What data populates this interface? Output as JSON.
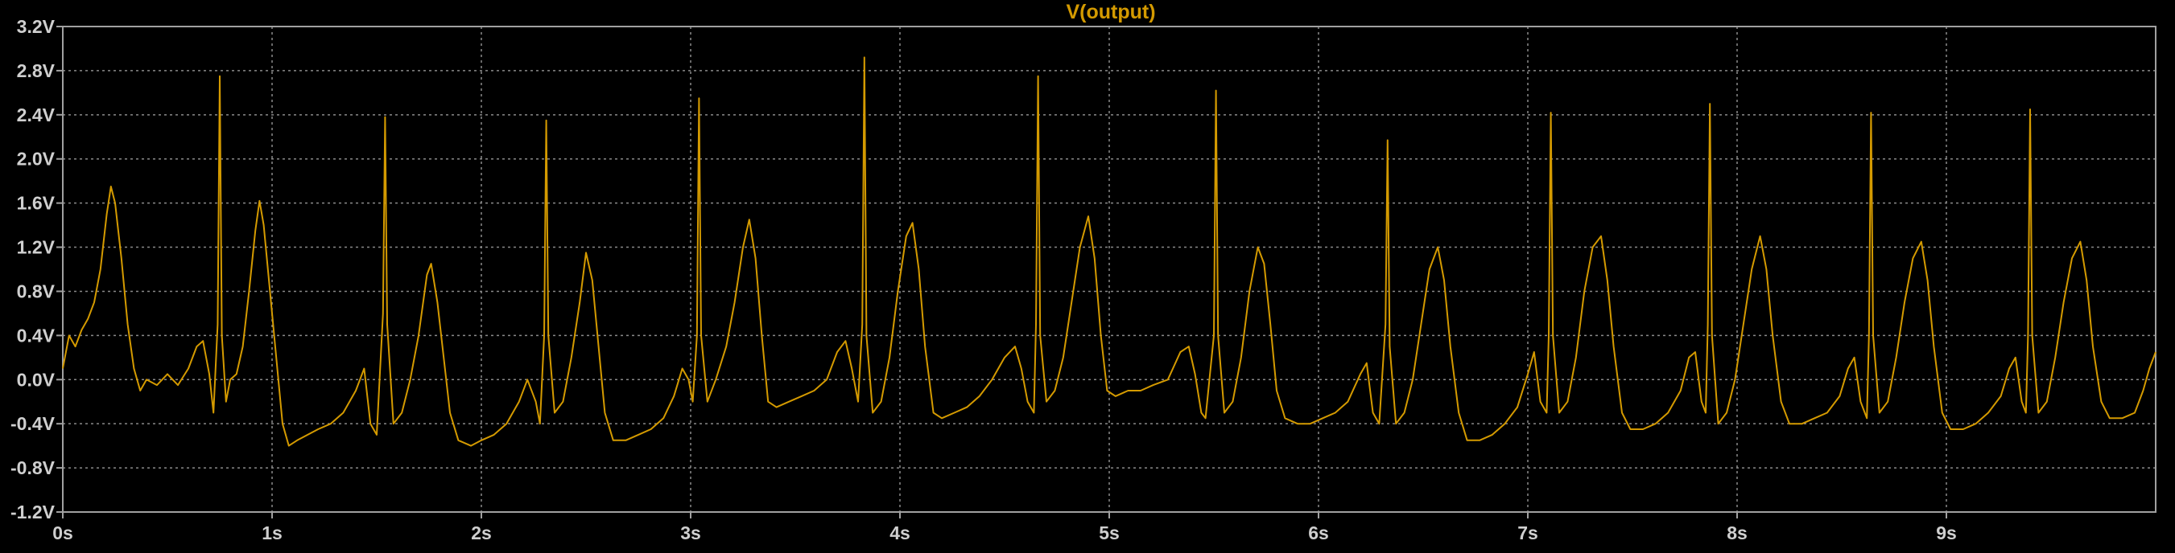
{
  "chart_data": {
    "type": "line",
    "title": "V(output)",
    "xlabel": "",
    "ylabel": "",
    "xlim": [
      0,
      10
    ],
    "ylim": [
      -1.2,
      3.2
    ],
    "grid": true,
    "x_ticks": [
      {
        "value": 0,
        "label": "0s"
      },
      {
        "value": 1,
        "label": "1s"
      },
      {
        "value": 2,
        "label": "2s"
      },
      {
        "value": 3,
        "label": "3s"
      },
      {
        "value": 4,
        "label": "4s"
      },
      {
        "value": 5,
        "label": "5s"
      },
      {
        "value": 6,
        "label": "6s"
      },
      {
        "value": 7,
        "label": "7s"
      },
      {
        "value": 8,
        "label": "8s"
      },
      {
        "value": 9,
        "label": "9s"
      }
    ],
    "y_ticks": [
      {
        "value": 3.2,
        "label": "3.2V"
      },
      {
        "value": 2.8,
        "label": "2.8V"
      },
      {
        "value": 2.4,
        "label": "2.4V"
      },
      {
        "value": 2.0,
        "label": "2.0V"
      },
      {
        "value": 1.6,
        "label": "1.6V"
      },
      {
        "value": 1.2,
        "label": "1.2V"
      },
      {
        "value": 0.8,
        "label": "0.8V"
      },
      {
        "value": 0.4,
        "label": "0.4V"
      },
      {
        "value": 0.0,
        "label": "0.0V"
      },
      {
        "value": -0.4,
        "label": "-0.4V"
      },
      {
        "value": -0.8,
        "label": "-0.8V"
      },
      {
        "value": -1.2,
        "label": "-1.2V"
      }
    ],
    "series": [
      {
        "name": "V(output)",
        "color": "#d49a00",
        "points": [
          [
            0.0,
            0.1
          ],
          [
            0.03,
            0.4
          ],
          [
            0.06,
            0.3
          ],
          [
            0.09,
            0.45
          ],
          [
            0.12,
            0.55
          ],
          [
            0.15,
            0.7
          ],
          [
            0.18,
            1.0
          ],
          [
            0.21,
            1.5
          ],
          [
            0.23,
            1.75
          ],
          [
            0.25,
            1.6
          ],
          [
            0.28,
            1.1
          ],
          [
            0.31,
            0.5
          ],
          [
            0.34,
            0.1
          ],
          [
            0.37,
            -0.1
          ],
          [
            0.4,
            0.0
          ],
          [
            0.45,
            -0.05
          ],
          [
            0.5,
            0.05
          ],
          [
            0.55,
            -0.05
          ],
          [
            0.6,
            0.1
          ],
          [
            0.64,
            0.3
          ],
          [
            0.67,
            0.35
          ],
          [
            0.7,
            0.05
          ],
          [
            0.72,
            -0.3
          ],
          [
            0.74,
            0.5
          ],
          [
            0.75,
            2.75
          ],
          [
            0.76,
            0.4
          ],
          [
            0.78,
            -0.2
          ],
          [
            0.8,
            0.0
          ],
          [
            0.83,
            0.05
          ],
          [
            0.86,
            0.3
          ],
          [
            0.89,
            0.8
          ],
          [
            0.92,
            1.35
          ],
          [
            0.94,
            1.62
          ],
          [
            0.96,
            1.4
          ],
          [
            0.99,
            0.8
          ],
          [
            1.02,
            0.2
          ],
          [
            1.05,
            -0.4
          ],
          [
            1.08,
            -0.6
          ],
          [
            1.12,
            -0.55
          ],
          [
            1.17,
            -0.5
          ],
          [
            1.22,
            -0.45
          ],
          [
            1.28,
            -0.4
          ],
          [
            1.34,
            -0.3
          ],
          [
            1.4,
            -0.1
          ],
          [
            1.44,
            0.1
          ],
          [
            1.47,
            -0.4
          ],
          [
            1.5,
            -0.5
          ],
          [
            1.53,
            0.6
          ],
          [
            1.54,
            2.38
          ],
          [
            1.55,
            0.5
          ],
          [
            1.58,
            -0.4
          ],
          [
            1.62,
            -0.3
          ],
          [
            1.66,
            0.0
          ],
          [
            1.7,
            0.4
          ],
          [
            1.74,
            0.95
          ],
          [
            1.76,
            1.05
          ],
          [
            1.79,
            0.7
          ],
          [
            1.82,
            0.2
          ],
          [
            1.85,
            -0.3
          ],
          [
            1.89,
            -0.55
          ],
          [
            1.95,
            -0.6
          ],
          [
            2.0,
            -0.55
          ],
          [
            2.06,
            -0.5
          ],
          [
            2.12,
            -0.4
          ],
          [
            2.18,
            -0.2
          ],
          [
            2.22,
            0.0
          ],
          [
            2.26,
            -0.2
          ],
          [
            2.28,
            -0.4
          ],
          [
            2.3,
            0.4
          ],
          [
            2.31,
            2.35
          ],
          [
            2.32,
            0.4
          ],
          [
            2.35,
            -0.3
          ],
          [
            2.39,
            -0.2
          ],
          [
            2.43,
            0.2
          ],
          [
            2.47,
            0.7
          ],
          [
            2.5,
            1.15
          ],
          [
            2.53,
            0.9
          ],
          [
            2.56,
            0.3
          ],
          [
            2.59,
            -0.3
          ],
          [
            2.63,
            -0.55
          ],
          [
            2.69,
            -0.55
          ],
          [
            2.75,
            -0.5
          ],
          [
            2.81,
            -0.45
          ],
          [
            2.87,
            -0.35
          ],
          [
            2.92,
            -0.15
          ],
          [
            2.96,
            0.1
          ],
          [
            2.99,
            0.0
          ],
          [
            3.01,
            -0.2
          ],
          [
            3.03,
            0.4
          ],
          [
            3.04,
            2.55
          ],
          [
            3.05,
            0.4
          ],
          [
            3.08,
            -0.2
          ],
          [
            3.12,
            0.0
          ],
          [
            3.17,
            0.3
          ],
          [
            3.21,
            0.7
          ],
          [
            3.25,
            1.2
          ],
          [
            3.28,
            1.45
          ],
          [
            3.31,
            1.1
          ],
          [
            3.34,
            0.4
          ],
          [
            3.37,
            -0.2
          ],
          [
            3.41,
            -0.25
          ],
          [
            3.47,
            -0.2
          ],
          [
            3.53,
            -0.15
          ],
          [
            3.59,
            -0.1
          ],
          [
            3.65,
            0.0
          ],
          [
            3.7,
            0.25
          ],
          [
            3.74,
            0.35
          ],
          [
            3.77,
            0.1
          ],
          [
            3.8,
            -0.2
          ],
          [
            3.82,
            0.5
          ],
          [
            3.83,
            2.92
          ],
          [
            3.84,
            0.4
          ],
          [
            3.87,
            -0.3
          ],
          [
            3.91,
            -0.2
          ],
          [
            3.95,
            0.2
          ],
          [
            3.99,
            0.8
          ],
          [
            4.03,
            1.3
          ],
          [
            4.06,
            1.42
          ],
          [
            4.09,
            1.0
          ],
          [
            4.12,
            0.3
          ],
          [
            4.16,
            -0.3
          ],
          [
            4.2,
            -0.35
          ],
          [
            4.26,
            -0.3
          ],
          [
            4.32,
            -0.25
          ],
          [
            4.38,
            -0.15
          ],
          [
            4.44,
            0.0
          ],
          [
            4.5,
            0.2
          ],
          [
            4.55,
            0.3
          ],
          [
            4.58,
            0.1
          ],
          [
            4.61,
            -0.2
          ],
          [
            4.64,
            -0.3
          ],
          [
            4.65,
            0.5
          ],
          [
            4.66,
            2.75
          ],
          [
            4.67,
            0.4
          ],
          [
            4.7,
            -0.2
          ],
          [
            4.74,
            -0.1
          ],
          [
            4.78,
            0.2
          ],
          [
            4.82,
            0.7
          ],
          [
            4.86,
            1.2
          ],
          [
            4.9,
            1.48
          ],
          [
            4.93,
            1.1
          ],
          [
            4.96,
            0.4
          ],
          [
            4.99,
            -0.1
          ],
          [
            5.03,
            -0.15
          ],
          [
            5.09,
            -0.1
          ],
          [
            5.15,
            -0.1
          ],
          [
            5.21,
            -0.05
          ],
          [
            5.28,
            0.0
          ],
          [
            5.34,
            0.25
          ],
          [
            5.38,
            0.3
          ],
          [
            5.41,
            0.05
          ],
          [
            5.44,
            -0.3
          ],
          [
            5.46,
            -0.35
          ],
          [
            5.5,
            0.4
          ],
          [
            5.51,
            2.62
          ],
          [
            5.52,
            0.4
          ],
          [
            5.55,
            -0.3
          ],
          [
            5.59,
            -0.2
          ],
          [
            5.63,
            0.2
          ],
          [
            5.67,
            0.8
          ],
          [
            5.71,
            1.2
          ],
          [
            5.74,
            1.05
          ],
          [
            5.77,
            0.5
          ],
          [
            5.8,
            -0.1
          ],
          [
            5.84,
            -0.35
          ],
          [
            5.9,
            -0.4
          ],
          [
            5.96,
            -0.4
          ],
          [
            6.02,
            -0.35
          ],
          [
            6.08,
            -0.3
          ],
          [
            6.14,
            -0.2
          ],
          [
            6.2,
            0.05
          ],
          [
            6.23,
            0.15
          ],
          [
            6.26,
            -0.3
          ],
          [
            6.29,
            -0.4
          ],
          [
            6.32,
            0.5
          ],
          [
            6.33,
            2.17
          ],
          [
            6.34,
            0.3
          ],
          [
            6.37,
            -0.4
          ],
          [
            6.41,
            -0.3
          ],
          [
            6.45,
            0.0
          ],
          [
            6.49,
            0.5
          ],
          [
            6.53,
            1.0
          ],
          [
            6.57,
            1.2
          ],
          [
            6.6,
            0.9
          ],
          [
            6.63,
            0.3
          ],
          [
            6.67,
            -0.3
          ],
          [
            6.71,
            -0.55
          ],
          [
            6.77,
            -0.55
          ],
          [
            6.83,
            -0.5
          ],
          [
            6.89,
            -0.4
          ],
          [
            6.95,
            -0.25
          ],
          [
            7.0,
            0.05
          ],
          [
            7.03,
            0.25
          ],
          [
            7.06,
            -0.2
          ],
          [
            7.09,
            -0.3
          ],
          [
            7.1,
            0.4
          ],
          [
            7.11,
            2.42
          ],
          [
            7.12,
            0.4
          ],
          [
            7.15,
            -0.3
          ],
          [
            7.19,
            -0.2
          ],
          [
            7.23,
            0.2
          ],
          [
            7.27,
            0.8
          ],
          [
            7.31,
            1.2
          ],
          [
            7.35,
            1.3
          ],
          [
            7.38,
            0.9
          ],
          [
            7.41,
            0.3
          ],
          [
            7.45,
            -0.3
          ],
          [
            7.49,
            -0.45
          ],
          [
            7.55,
            -0.45
          ],
          [
            7.61,
            -0.4
          ],
          [
            7.67,
            -0.3
          ],
          [
            7.73,
            -0.1
          ],
          [
            7.77,
            0.2
          ],
          [
            7.8,
            0.25
          ],
          [
            7.83,
            -0.2
          ],
          [
            7.85,
            -0.3
          ],
          [
            7.86,
            0.5
          ],
          [
            7.87,
            2.5
          ],
          [
            7.88,
            0.4
          ],
          [
            7.91,
            -0.4
          ],
          [
            7.95,
            -0.3
          ],
          [
            7.99,
            0.0
          ],
          [
            8.03,
            0.5
          ],
          [
            8.07,
            1.0
          ],
          [
            8.11,
            1.3
          ],
          [
            8.14,
            1.0
          ],
          [
            8.17,
            0.4
          ],
          [
            8.21,
            -0.2
          ],
          [
            8.25,
            -0.4
          ],
          [
            8.31,
            -0.4
          ],
          [
            8.37,
            -0.35
          ],
          [
            8.43,
            -0.3
          ],
          [
            8.49,
            -0.15
          ],
          [
            8.53,
            0.1
          ],
          [
            8.56,
            0.2
          ],
          [
            8.59,
            -0.2
          ],
          [
            8.62,
            -0.35
          ],
          [
            8.63,
            0.4
          ],
          [
            8.64,
            2.42
          ],
          [
            8.65,
            0.4
          ],
          [
            8.68,
            -0.3
          ],
          [
            8.72,
            -0.2
          ],
          [
            8.76,
            0.2
          ],
          [
            8.8,
            0.7
          ],
          [
            8.84,
            1.1
          ],
          [
            8.88,
            1.25
          ],
          [
            8.91,
            0.9
          ],
          [
            8.94,
            0.3
          ],
          [
            8.98,
            -0.3
          ],
          [
            9.02,
            -0.45
          ],
          [
            9.08,
            -0.45
          ],
          [
            9.14,
            -0.4
          ],
          [
            9.2,
            -0.3
          ],
          [
            9.26,
            -0.15
          ],
          [
            9.3,
            0.1
          ],
          [
            9.33,
            0.2
          ],
          [
            9.36,
            -0.2
          ],
          [
            9.38,
            -0.3
          ],
          [
            9.39,
            0.4
          ],
          [
            9.4,
            2.45
          ],
          [
            9.41,
            0.4
          ],
          [
            9.44,
            -0.3
          ],
          [
            9.48,
            -0.2
          ],
          [
            9.52,
            0.2
          ],
          [
            9.56,
            0.7
          ],
          [
            9.6,
            1.1
          ],
          [
            9.64,
            1.25
          ],
          [
            9.67,
            0.9
          ],
          [
            9.7,
            0.3
          ],
          [
            9.74,
            -0.2
          ],
          [
            9.78,
            -0.35
          ],
          [
            9.84,
            -0.35
          ],
          [
            9.9,
            -0.3
          ],
          [
            9.94,
            -0.1
          ],
          [
            9.97,
            0.1
          ],
          [
            10.0,
            0.25
          ]
        ]
      }
    ]
  }
}
